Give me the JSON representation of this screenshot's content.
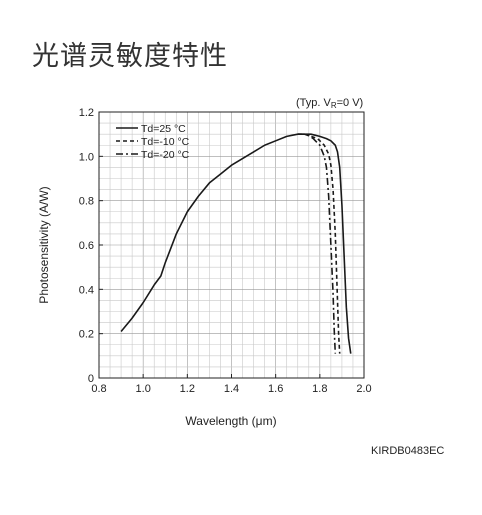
{
  "page_title": "光谱灵敏度特性",
  "figure_code": "KIRDB0483EC",
  "chart_data": {
    "type": "line",
    "title": "",
    "condition": "(Typ. V",
    "condition_sub": "R",
    "condition_tail": "=0 V)",
    "xlabel": "Wavelength (μm)",
    "ylabel": "Photosensitivity (A/W)",
    "xlim": [
      0.8,
      2.0
    ],
    "ylim": [
      0,
      1.2
    ],
    "x_ticks": [
      "0.8",
      "1.0",
      "1.2",
      "1.4",
      "1.6",
      "1.8",
      "2.0"
    ],
    "y_ticks": [
      "0",
      "0.2",
      "0.4",
      "0.6",
      "0.8",
      "1.0",
      "1.2"
    ],
    "grid": true,
    "legend_position": "top-left",
    "series": [
      {
        "name": "Td=25 °C",
        "style": "solid",
        "x": [
          0.9,
          0.95,
          1.0,
          1.05,
          1.08,
          1.1,
          1.15,
          1.2,
          1.25,
          1.3,
          1.35,
          1.4,
          1.45,
          1.5,
          1.55,
          1.6,
          1.65,
          1.7,
          1.73,
          1.76,
          1.8,
          1.83,
          1.85,
          1.87,
          1.88,
          1.89,
          1.9,
          1.91,
          1.92,
          1.93,
          1.94
        ],
        "y": [
          0.21,
          0.27,
          0.34,
          0.42,
          0.46,
          0.52,
          0.65,
          0.75,
          0.82,
          0.88,
          0.92,
          0.96,
          0.99,
          1.02,
          1.05,
          1.07,
          1.09,
          1.1,
          1.1,
          1.1,
          1.09,
          1.08,
          1.07,
          1.05,
          1.02,
          0.95,
          0.78,
          0.55,
          0.32,
          0.18,
          0.11
        ]
      },
      {
        "name": "Td=-10 °C",
        "style": "dashed",
        "x": [
          1.7,
          1.73,
          1.76,
          1.79,
          1.82,
          1.84,
          1.85,
          1.86,
          1.87,
          1.875,
          1.88,
          1.885,
          1.89
        ],
        "y": [
          1.1,
          1.1,
          1.09,
          1.08,
          1.05,
          1.01,
          0.96,
          0.85,
          0.65,
          0.5,
          0.35,
          0.2,
          0.11
        ]
      },
      {
        "name": "Td=-20 °C",
        "style": "dashdot",
        "x": [
          1.7,
          1.72,
          1.74,
          1.77,
          1.8,
          1.82,
          1.83,
          1.84,
          1.85,
          1.86,
          1.865,
          1.87
        ],
        "y": [
          1.1,
          1.1,
          1.1,
          1.08,
          1.05,
          1.0,
          0.95,
          0.82,
          0.6,
          0.38,
          0.22,
          0.11
        ]
      }
    ]
  }
}
